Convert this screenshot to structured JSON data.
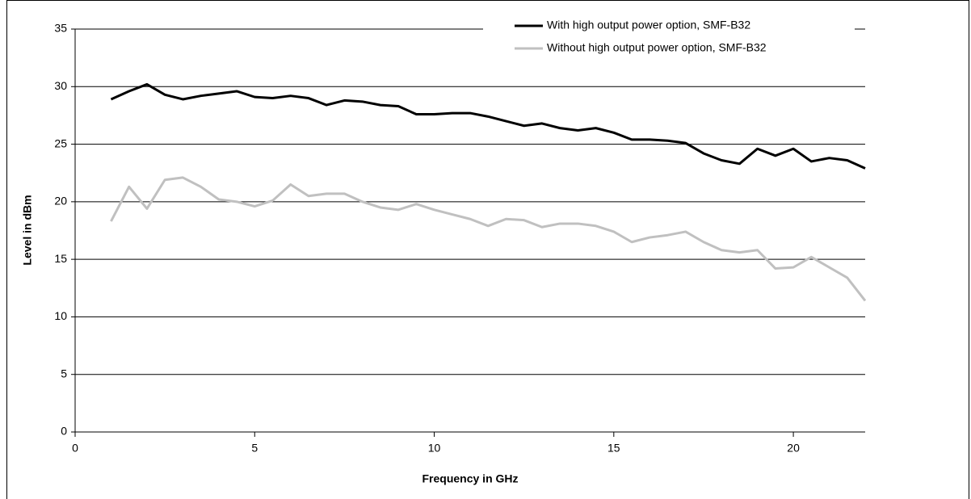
{
  "chart_data": {
    "type": "line",
    "xlabel": "Frequency in GHz",
    "ylabel": "Level in dBm",
    "x": [
      1,
      1.5,
      2,
      2.5,
      3,
      3.5,
      4,
      4.5,
      5,
      5.5,
      6,
      6.5,
      7,
      7.5,
      8,
      8.5,
      9,
      9.5,
      10,
      10.5,
      11,
      11.5,
      12,
      12.5,
      13,
      13.5,
      14,
      14.5,
      15,
      15.5,
      16,
      16.5,
      17,
      17.5,
      18,
      18.5,
      19,
      19.5,
      20,
      20.5,
      21,
      21.5,
      22
    ],
    "series": [
      {
        "name": "With high output power option, SMF-B32",
        "color": "#000000",
        "values": [
          28.9,
          29.6,
          30.2,
          29.3,
          28.9,
          29.2,
          29.4,
          29.6,
          29.1,
          29.0,
          29.2,
          29.0,
          28.4,
          28.8,
          28.7,
          28.4,
          28.3,
          27.6,
          27.6,
          27.7,
          27.7,
          27.4,
          27.0,
          26.6,
          26.8,
          26.4,
          26.2,
          26.4,
          26.0,
          25.4,
          25.4,
          25.3,
          25.1,
          24.2,
          23.6,
          23.3,
          24.6,
          24.0,
          24.6,
          23.5,
          23.8,
          23.6,
          22.9
        ]
      },
      {
        "name": "Without high output power option, SMF-B32",
        "color": "#c0c0c0",
        "values": [
          18.3,
          21.3,
          19.4,
          21.9,
          22.1,
          21.3,
          20.2,
          20.0,
          19.6,
          20.1,
          21.5,
          20.5,
          20.7,
          20.7,
          20.0,
          19.5,
          19.3,
          19.8,
          19.3,
          18.9,
          18.5,
          17.9,
          18.5,
          18.4,
          17.8,
          18.1,
          18.1,
          17.9,
          17.4,
          16.5,
          16.9,
          17.1,
          17.4,
          16.5,
          15.8,
          15.6,
          15.8,
          14.2,
          14.3,
          15.2,
          14.3,
          13.4,
          11.4
        ]
      }
    ],
    "xlim": [
      0,
      22
    ],
    "xticks": [
      0,
      5,
      10,
      15,
      20
    ],
    "ylim": [
      0,
      35
    ],
    "yticks": [
      0,
      5,
      10,
      15,
      20,
      25,
      30,
      35
    ],
    "grid": true,
    "legend": "upper right"
  }
}
